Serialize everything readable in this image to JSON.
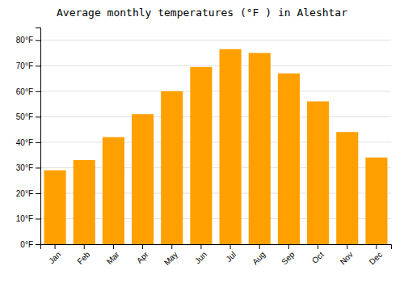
{
  "chart_data": {
    "type": "bar",
    "title": "Average monthly temperatures (°F ) in Aleshtar",
    "categories": [
      "Jan",
      "Feb",
      "Mar",
      "Apr",
      "May",
      "Jun",
      "Jul",
      "Aug",
      "Sep",
      "Oct",
      "Nov",
      "Dec"
    ],
    "values": [
      29,
      33,
      42,
      51,
      60,
      69.5,
      76.5,
      75,
      67,
      56,
      44,
      34
    ],
    "color": "#FFA000",
    "ylim": [
      0,
      85
    ],
    "yticks": [
      {
        "value": 0,
        "label": "0°F"
      },
      {
        "value": 10,
        "label": "10°F"
      },
      {
        "value": 20,
        "label": "20°F"
      },
      {
        "value": 30,
        "label": "30°F"
      },
      {
        "value": 40,
        "label": "40°F"
      },
      {
        "value": 50,
        "label": "50°F"
      },
      {
        "value": 60,
        "label": "60°F"
      },
      {
        "value": 70,
        "label": "70°F"
      },
      {
        "value": 80,
        "label": "80°F"
      }
    ],
    "grid": true
  }
}
